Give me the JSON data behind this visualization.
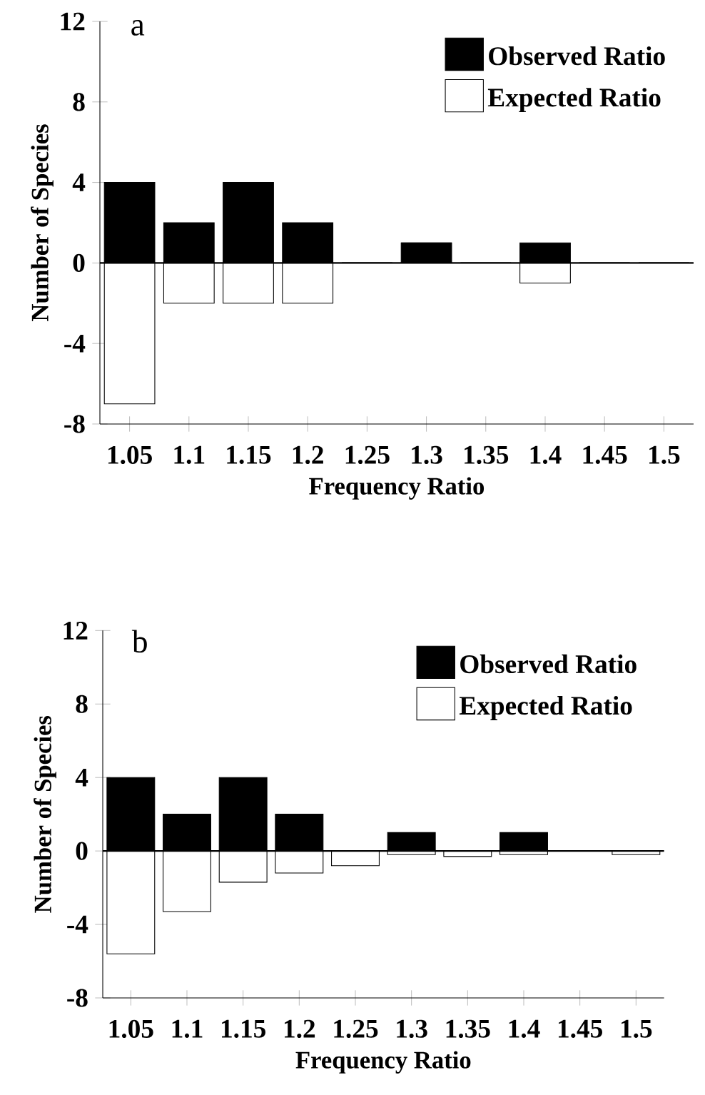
{
  "chart_data": [
    {
      "type": "bar",
      "title": "a",
      "xlabel": "Frequency Ratio",
      "ylabel": "Number of Species",
      "categories": [
        "1.05",
        "1.1",
        "1.15",
        "1.2",
        "1.25",
        "1.3",
        "1.35",
        "1.4",
        "1.45",
        "1.5"
      ],
      "series": [
        {
          "name": "Observed Ratio",
          "color": "#000000",
          "values": [
            4,
            2,
            4,
            2,
            0,
            1,
            0,
            1,
            0,
            0
          ]
        },
        {
          "name": "Expected Ratio",
          "color": "#ffffff",
          "values": [
            -7,
            -2,
            -2,
            -2,
            0,
            0,
            0,
            -1,
            0,
            0
          ]
        }
      ],
      "stacked": true,
      "ref_lines": [
        {
          "axis": "y",
          "value": 0
        }
      ],
      "ylim": [
        -8,
        12
      ],
      "yticks": [
        -8,
        -4,
        0,
        4,
        8,
        12
      ],
      "legend": "top right"
    },
    {
      "type": "bar",
      "title": "b",
      "xlabel": "Frequency Ratio",
      "ylabel": "Number of Species",
      "categories": [
        "1.05",
        "1.1",
        "1.15",
        "1.2",
        "1.25",
        "1.3",
        "1.35",
        "1.4",
        "1.45",
        "1.5"
      ],
      "series": [
        {
          "name": "Observed Ratio",
          "color": "#000000",
          "values": [
            4,
            2,
            4,
            2,
            0,
            1,
            0,
            1,
            0,
            0
          ]
        },
        {
          "name": "Expected Ratio",
          "color": "#ffffff",
          "values": [
            -5.6,
            -3.3,
            -1.7,
            -1.2,
            -0.8,
            -0.2,
            -0.3,
            -0.2,
            0,
            -0.2
          ]
        }
      ],
      "stacked": true,
      "ref_lines": [
        {
          "axis": "y",
          "value": 0
        }
      ],
      "ylim": [
        -8,
        12
      ],
      "yticks": [
        -8,
        -4,
        0,
        4,
        8,
        12
      ],
      "legend": "top right"
    }
  ]
}
